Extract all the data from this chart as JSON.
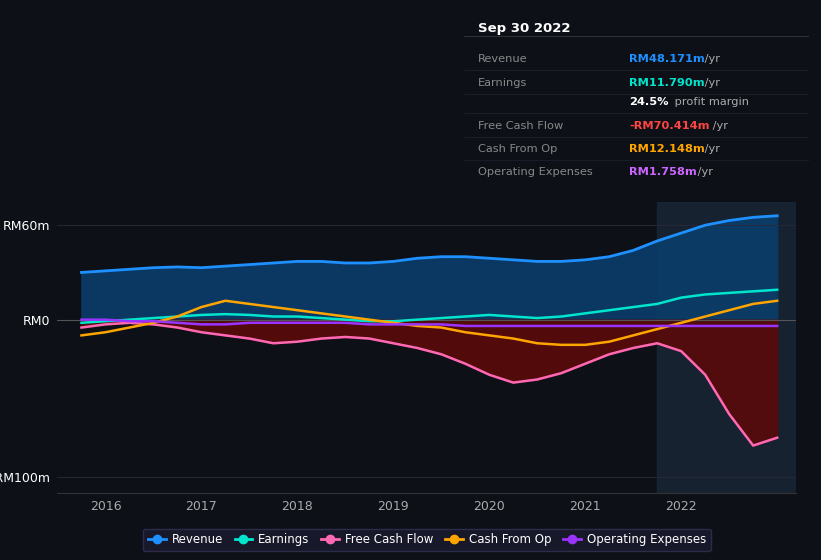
{
  "bg_color": "#0d1117",
  "plot_bg_color": "#0d1117",
  "ylim": [
    -110,
    75
  ],
  "xlim": [
    2015.5,
    2023.2
  ],
  "xticks": [
    2016,
    2017,
    2018,
    2019,
    2020,
    2021,
    2022
  ],
  "highlight_x": 2021.75,
  "info_box": {
    "title": "Sep 30 2022",
    "rows": [
      {
        "label": "Revenue",
        "value": "RM48.171m",
        "value_color": "#1e90ff"
      },
      {
        "label": "Earnings",
        "value": "RM11.790m",
        "value_color": "#00e5cc"
      },
      {
        "label": "",
        "value": "24.5% profit margin",
        "value_color": "#ffffff"
      },
      {
        "label": "Free Cash Flow",
        "value": "-RM70.414m",
        "value_color": "#ff4444"
      },
      {
        "label": "Cash From Op",
        "value": "RM12.148m",
        "value_color": "#ffa500"
      },
      {
        "label": "Operating Expenses",
        "value": "RM1.758m",
        "value_color": "#cc66ff"
      }
    ]
  },
  "legend": [
    {
      "label": "Revenue",
      "color": "#1e90ff"
    },
    {
      "label": "Earnings",
      "color": "#00e5cc"
    },
    {
      "label": "Free Cash Flow",
      "color": "#ff69b4"
    },
    {
      "label": "Cash From Op",
      "color": "#ffa500"
    },
    {
      "label": "Operating Expenses",
      "color": "#9933ff"
    }
  ],
  "series": {
    "x": [
      2015.75,
      2016.0,
      2016.25,
      2016.5,
      2016.75,
      2017.0,
      2017.25,
      2017.5,
      2017.75,
      2018.0,
      2018.25,
      2018.5,
      2018.75,
      2019.0,
      2019.25,
      2019.5,
      2019.75,
      2020.0,
      2020.25,
      2020.5,
      2020.75,
      2021.0,
      2021.25,
      2021.5,
      2021.75,
      2022.0,
      2022.25,
      2022.5,
      2022.75,
      2023.0
    ],
    "revenue": [
      30,
      31,
      32,
      33,
      33.5,
      33,
      34,
      35,
      36,
      37,
      37,
      36,
      36,
      37,
      39,
      40,
      40,
      39,
      38,
      37,
      37,
      38,
      40,
      44,
      50,
      55,
      60,
      63,
      65,
      66
    ],
    "earnings": [
      -2,
      -1,
      0,
      1,
      2,
      3,
      3.5,
      3,
      2,
      2,
      1,
      0,
      -1,
      -1,
      0,
      1,
      2,
      3,
      2,
      1,
      2,
      4,
      6,
      8,
      10,
      14,
      16,
      17,
      18,
      19
    ],
    "free_cash_flow": [
      -5,
      -3,
      -2,
      -3,
      -5,
      -8,
      -10,
      -12,
      -15,
      -14,
      -12,
      -11,
      -12,
      -15,
      -18,
      -22,
      -28,
      -35,
      -40,
      -38,
      -34,
      -28,
      -22,
      -18,
      -15,
      -20,
      -35,
      -60,
      -80,
      -75
    ],
    "cash_from_op": [
      -10,
      -8,
      -5,
      -2,
      2,
      8,
      12,
      10,
      8,
      6,
      4,
      2,
      0,
      -2,
      -4,
      -5,
      -8,
      -10,
      -12,
      -15,
      -16,
      -16,
      -14,
      -10,
      -6,
      -2,
      2,
      6,
      10,
      12
    ],
    "operating_expenses": [
      0,
      0,
      -1,
      -1,
      -2,
      -3,
      -3,
      -2,
      -2,
      -2,
      -2,
      -2,
      -3,
      -3,
      -3,
      -3,
      -4,
      -4,
      -4,
      -4,
      -4,
      -4,
      -4,
      -4,
      -4,
      -4,
      -4,
      -4,
      -4,
      -4
    ]
  }
}
